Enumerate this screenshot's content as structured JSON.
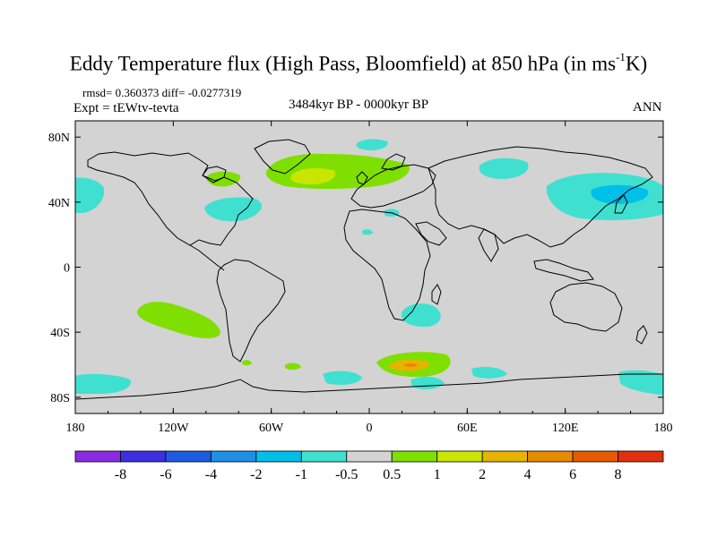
{
  "header": {
    "title": "Eddy Temperature flux (High Pass, Bloomfield) at 850 hPa (in ms",
    "title_sup": "-1",
    "title_end": "K)",
    "stats": "rmsd= 0.360373 diff= -0.0277319",
    "experiment": "Expt = tEWtv-tevta",
    "period": "3484kyr BP - 0000kyr BP",
    "season": "ANN"
  },
  "map": {
    "lat_labels": [
      {
        "label": "80N",
        "lat": 80
      },
      {
        "label": "40N",
        "lat": 40
      },
      {
        "label": "0",
        "lat": 0
      },
      {
        "label": "40S",
        "lat": -40
      },
      {
        "label": "80S",
        "lat": -80
      }
    ],
    "lon_labels": [
      {
        "label": "180",
        "lon": -180
      },
      {
        "label": "120W",
        "lon": -120
      },
      {
        "label": "60W",
        "lon": -60
      },
      {
        "label": "0",
        "lon": 0
      },
      {
        "label": "60E",
        "lon": 60
      },
      {
        "label": "120E",
        "lon": 120
      },
      {
        "label": "180",
        "lon": 180
      }
    ],
    "background_color": "#d3d3d3",
    "coastline_color": "#000000"
  },
  "legend": {
    "labels": [
      "-8",
      "-6",
      "-4",
      "-2",
      "-1",
      "-0.5",
      "0.5",
      "1",
      "2",
      "4",
      "6",
      "8"
    ],
    "colors": [
      "#8a2be2",
      "#3b2fe0",
      "#1e5be0",
      "#1e90e8",
      "#00bfe8",
      "#40e0d0",
      "#d3d3d3",
      "#7fdf00",
      "#c8e600",
      "#e6b400",
      "#e68a00",
      "#e65a00",
      "#e03010"
    ]
  }
}
